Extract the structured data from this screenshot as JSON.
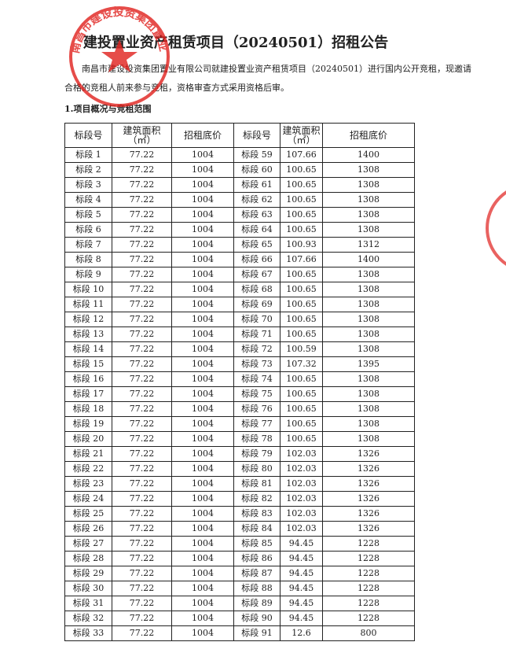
{
  "title": "建投置业资产租赁项目（20240501）招租公告",
  "intro": "南昌市建设投资集团置业有限公司就建投置业资产租赁项目（20240501）进行国内公开竞租，现邀请合格的竞租人前来参与竞租，资格审查方式采用资格后审。",
  "section_heading": "1.项目概况与竞租范围",
  "stamp": "南昌市建设投资集团置业有限公司",
  "table": {
    "header": [
      "标段号",
      "建筑面积（㎡）",
      "招租底价",
      "标段号",
      "建筑面积（㎡）",
      "招租底价"
    ],
    "rows": [
      [
        "标段 1",
        "77.22",
        "1004",
        "标段 59",
        "107.66",
        "1400"
      ],
      [
        "标段 2",
        "77.22",
        "1004",
        "标段 60",
        "100.65",
        "1308"
      ],
      [
        "标段 3",
        "77.22",
        "1004",
        "标段 61",
        "100.65",
        "1308"
      ],
      [
        "标段 4",
        "77.22",
        "1004",
        "标段 62",
        "100.65",
        "1308"
      ],
      [
        "标段 5",
        "77.22",
        "1004",
        "标段 63",
        "100.65",
        "1308"
      ],
      [
        "标段 6",
        "77.22",
        "1004",
        "标段 64",
        "100.65",
        "1308"
      ],
      [
        "标段 7",
        "77.22",
        "1004",
        "标段 65",
        "100.93",
        "1312"
      ],
      [
        "标段 8",
        "77.22",
        "1004",
        "标段 66",
        "107.66",
        "1400"
      ],
      [
        "标段 9",
        "77.22",
        "1004",
        "标段 67",
        "100.65",
        "1308"
      ],
      [
        "标段 10",
        "77.22",
        "1004",
        "标段 68",
        "100.65",
        "1308"
      ],
      [
        "标段 11",
        "77.22",
        "1004",
        "标段 69",
        "100.65",
        "1308"
      ],
      [
        "标段 12",
        "77.22",
        "1004",
        "标段 70",
        "100.65",
        "1308"
      ],
      [
        "标段 13",
        "77.22",
        "1004",
        "标段 71",
        "100.65",
        "1308"
      ],
      [
        "标段 14",
        "77.22",
        "1004",
        "标段 72",
        "100.59",
        "1308"
      ],
      [
        "标段 15",
        "77.22",
        "1004",
        "标段 73",
        "107.32",
        "1395"
      ],
      [
        "标段 16",
        "77.22",
        "1004",
        "标段 74",
        "100.65",
        "1308"
      ],
      [
        "标段 17",
        "77.22",
        "1004",
        "标段 75",
        "100.65",
        "1308"
      ],
      [
        "标段 18",
        "77.22",
        "1004",
        "标段 76",
        "100.65",
        "1308"
      ],
      [
        "标段 19",
        "77.22",
        "1004",
        "标段 77",
        "100.65",
        "1308"
      ],
      [
        "标段 20",
        "77.22",
        "1004",
        "标段 78",
        "100.65",
        "1308"
      ],
      [
        "标段 21",
        "77.22",
        "1004",
        "标段 79",
        "102.03",
        "1326"
      ],
      [
        "标段 22",
        "77.22",
        "1004",
        "标段 80",
        "102.03",
        "1326"
      ],
      [
        "标段 23",
        "77.22",
        "1004",
        "标段 81",
        "102.03",
        "1326"
      ],
      [
        "标段 24",
        "77.22",
        "1004",
        "标段 82",
        "102.03",
        "1326"
      ],
      [
        "标段 25",
        "77.22",
        "1004",
        "标段 83",
        "102.03",
        "1326"
      ],
      [
        "标段 26",
        "77.22",
        "1004",
        "标段 84",
        "102.03",
        "1326"
      ],
      [
        "标段 27",
        "77.22",
        "1004",
        "标段 85",
        "94.45",
        "1228"
      ],
      [
        "标段 28",
        "77.22",
        "1004",
        "标段 86",
        "94.45",
        "1228"
      ],
      [
        "标段 29",
        "77.22",
        "1004",
        "标段 87",
        "94.45",
        "1228"
      ],
      [
        "标段 30",
        "77.22",
        "1004",
        "标段 88",
        "94.45",
        "1228"
      ],
      [
        "标段 31",
        "77.22",
        "1004",
        "标段 89",
        "94.45",
        "1228"
      ],
      [
        "标段 32",
        "77.22",
        "1004",
        "标段 90",
        "94.45",
        "1228"
      ],
      [
        "标段 33",
        "77.22",
        "1004",
        "标段 91",
        "12.6",
        "800"
      ]
    ]
  }
}
